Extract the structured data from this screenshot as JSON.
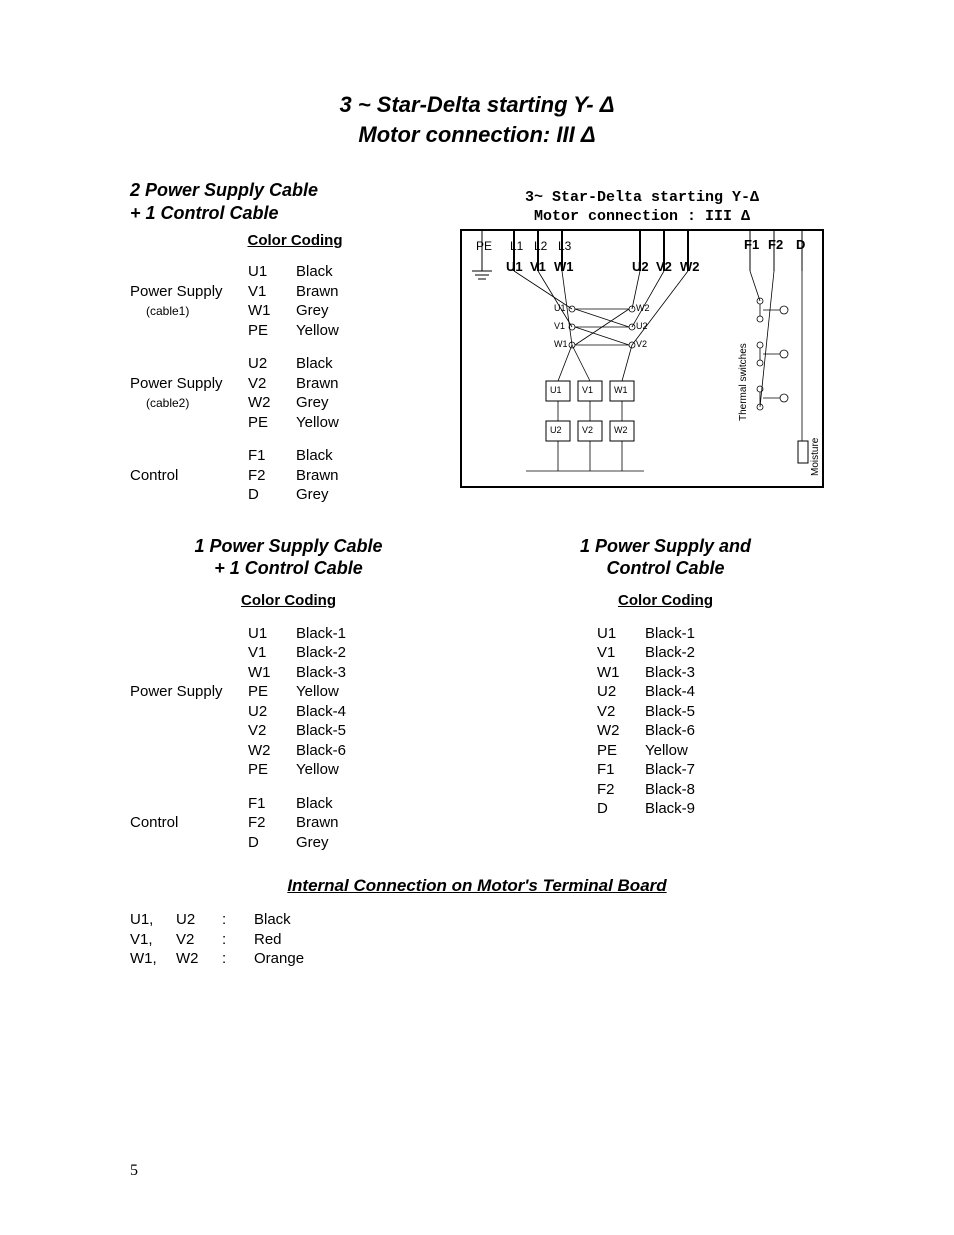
{
  "main_title_line1": "3 ~ Star-Delta starting Y- Δ",
  "main_title_line2": "Motor connection:  III Δ",
  "section1": {
    "heading_line1": "2 Power Supply Cable",
    "heading_line2": "+ 1 Control Cable",
    "color_coding_label": "Color Coding",
    "groups": [
      {
        "label": "Power Supply",
        "sub": "(cable1)",
        "rows": [
          [
            "U1",
            "Black"
          ],
          [
            "V1",
            "Brawn"
          ],
          [
            "W1",
            "Grey"
          ],
          [
            "PE",
            "Yellow"
          ]
        ]
      },
      {
        "label": "Power Supply",
        "sub": "(cable2)",
        "rows": [
          [
            "U2",
            "Black"
          ],
          [
            "V2",
            "Brawn"
          ],
          [
            "W2",
            "Grey"
          ],
          [
            "PE",
            "Yellow"
          ]
        ]
      },
      {
        "label": "Control",
        "sub": "",
        "rows": [
          [
            "F1",
            "Black"
          ],
          [
            "F2",
            "Brawn"
          ],
          [
            "D",
            "Grey"
          ]
        ]
      }
    ]
  },
  "diagram": {
    "title_line1": "3~ Star-Delta starting Y-Δ",
    "title_line2": "Motor connection : III Δ",
    "top_labels": {
      "PE": "PE",
      "L1": "L1",
      "L2": "L2",
      "L3": "L3",
      "F1": "F1",
      "F2": "F2",
      "D": "D"
    },
    "term_row1": [
      "U1",
      "V1",
      "W1"
    ],
    "term_row2": [
      "U2",
      "V2",
      "W2"
    ],
    "inner_small": [
      [
        "U1",
        "W2"
      ],
      [
        "V1",
        "U2"
      ],
      [
        "W1",
        "V2"
      ],
      [
        "U1",
        "V1",
        "W1"
      ],
      [
        "U2",
        "V2",
        "W2"
      ]
    ],
    "side_labels": {
      "thermal": "Thermal switches",
      "moisture": "Moisture"
    }
  },
  "section2": {
    "heading_line1": "1 Power Supply Cable",
    "heading_line2": "+ 1 Control Cable",
    "color_coding_label": "Color Coding",
    "groups": [
      {
        "label": "Power Supply",
        "sub": "",
        "rows": [
          [
            "U1",
            "Black-1"
          ],
          [
            "V1",
            "Black-2"
          ],
          [
            "W1",
            "Black-3"
          ],
          [
            "PE",
            "Yellow"
          ],
          [
            "U2",
            "Black-4"
          ],
          [
            "V2",
            "Black-5"
          ],
          [
            "W2",
            "Black-6"
          ],
          [
            "PE",
            "Yellow"
          ]
        ]
      },
      {
        "label": "Control",
        "sub": "",
        "rows": [
          [
            "F1",
            "Black"
          ],
          [
            "F2",
            "Brawn"
          ],
          [
            "D",
            "Grey"
          ]
        ]
      }
    ]
  },
  "section3": {
    "heading_line1": "1 Power Supply and",
    "heading_line2": "Control Cable",
    "color_coding_label": "Color Coding",
    "rows": [
      [
        "U1",
        "Black-1"
      ],
      [
        "V1",
        "Black-2"
      ],
      [
        "W1",
        "Black-3"
      ],
      [
        "U2",
        "Black-4"
      ],
      [
        "V2",
        "Black-5"
      ],
      [
        "W2",
        "Black-6"
      ],
      [
        "PE",
        "Yellow"
      ],
      [
        "F1",
        "Black-7"
      ],
      [
        "F2",
        "Black-8"
      ],
      [
        "D",
        "Black-9"
      ]
    ]
  },
  "internal": {
    "heading": "Internal Connection on Motor's Terminal Board",
    "rows": [
      [
        "U1,",
        "U2",
        ":",
        "Black"
      ],
      [
        "V1,",
        "V2",
        ":",
        "Red"
      ],
      [
        "W1,",
        "W2",
        ":",
        "Orange"
      ]
    ]
  },
  "page_number": "5"
}
